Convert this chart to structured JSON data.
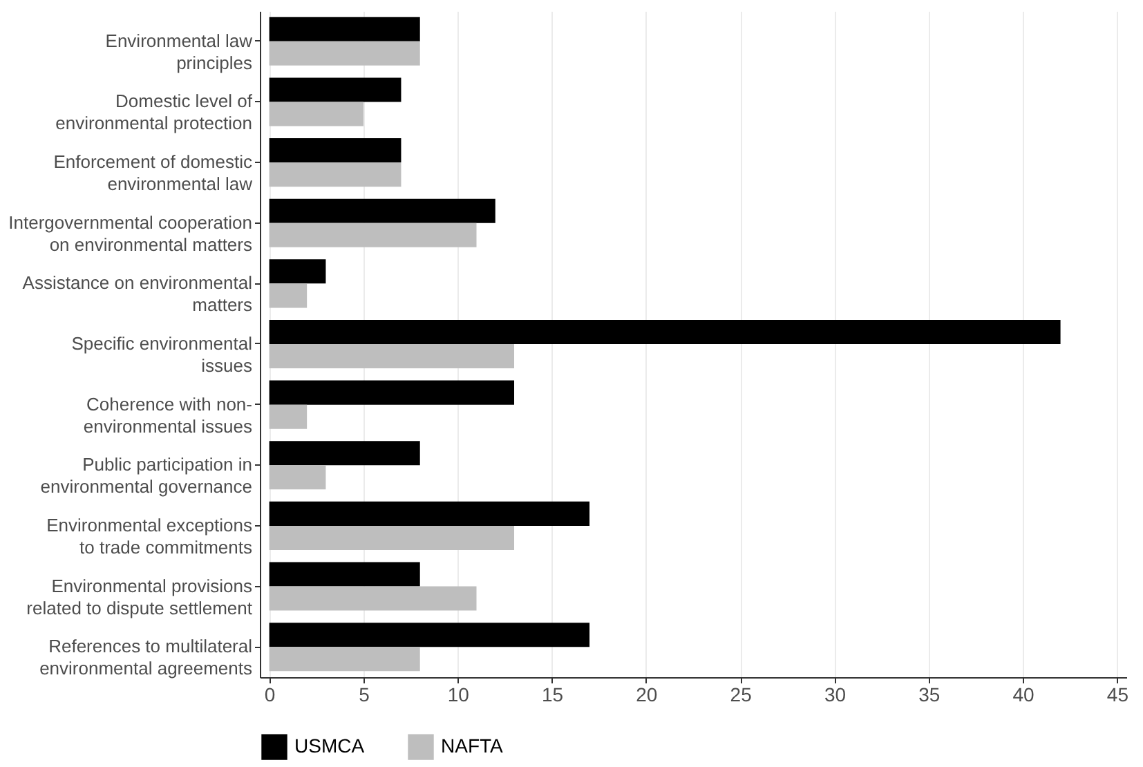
{
  "chart_data": {
    "type": "bar",
    "orientation": "horizontal",
    "categories": [
      "Environmental law\nprinciples",
      "Domestic level of\nenvironmental protection",
      "Enforcement of domestic\nenvironmental law",
      "Intergovernmental cooperation\non environmental matters",
      "Assistance on environmental\nmatters",
      "Specific environmental\nissues",
      "Coherence with non-\nenvironmental issues",
      "Public participation in\nenvironmental governance",
      "Environmental exceptions\nto trade commitments",
      "Environmental provisions\nrelated to dispute settlement",
      "References to multilateral\nenvironmental agreements"
    ],
    "series": [
      {
        "name": "USMCA",
        "color": "#000000",
        "values": [
          8,
          7,
          7,
          12,
          3,
          42,
          13,
          8,
          17,
          8,
          17
        ]
      },
      {
        "name": "NAFTA",
        "color": "#bebebe",
        "values": [
          8,
          5,
          7,
          11,
          2,
          13,
          2,
          3,
          13,
          11,
          8
        ]
      }
    ],
    "xlim": [
      -0.5,
      45.5
    ],
    "xticks": [
      0,
      5,
      10,
      15,
      20,
      25,
      30,
      35,
      40,
      45
    ],
    "grid": "x",
    "legend": "bottom"
  }
}
